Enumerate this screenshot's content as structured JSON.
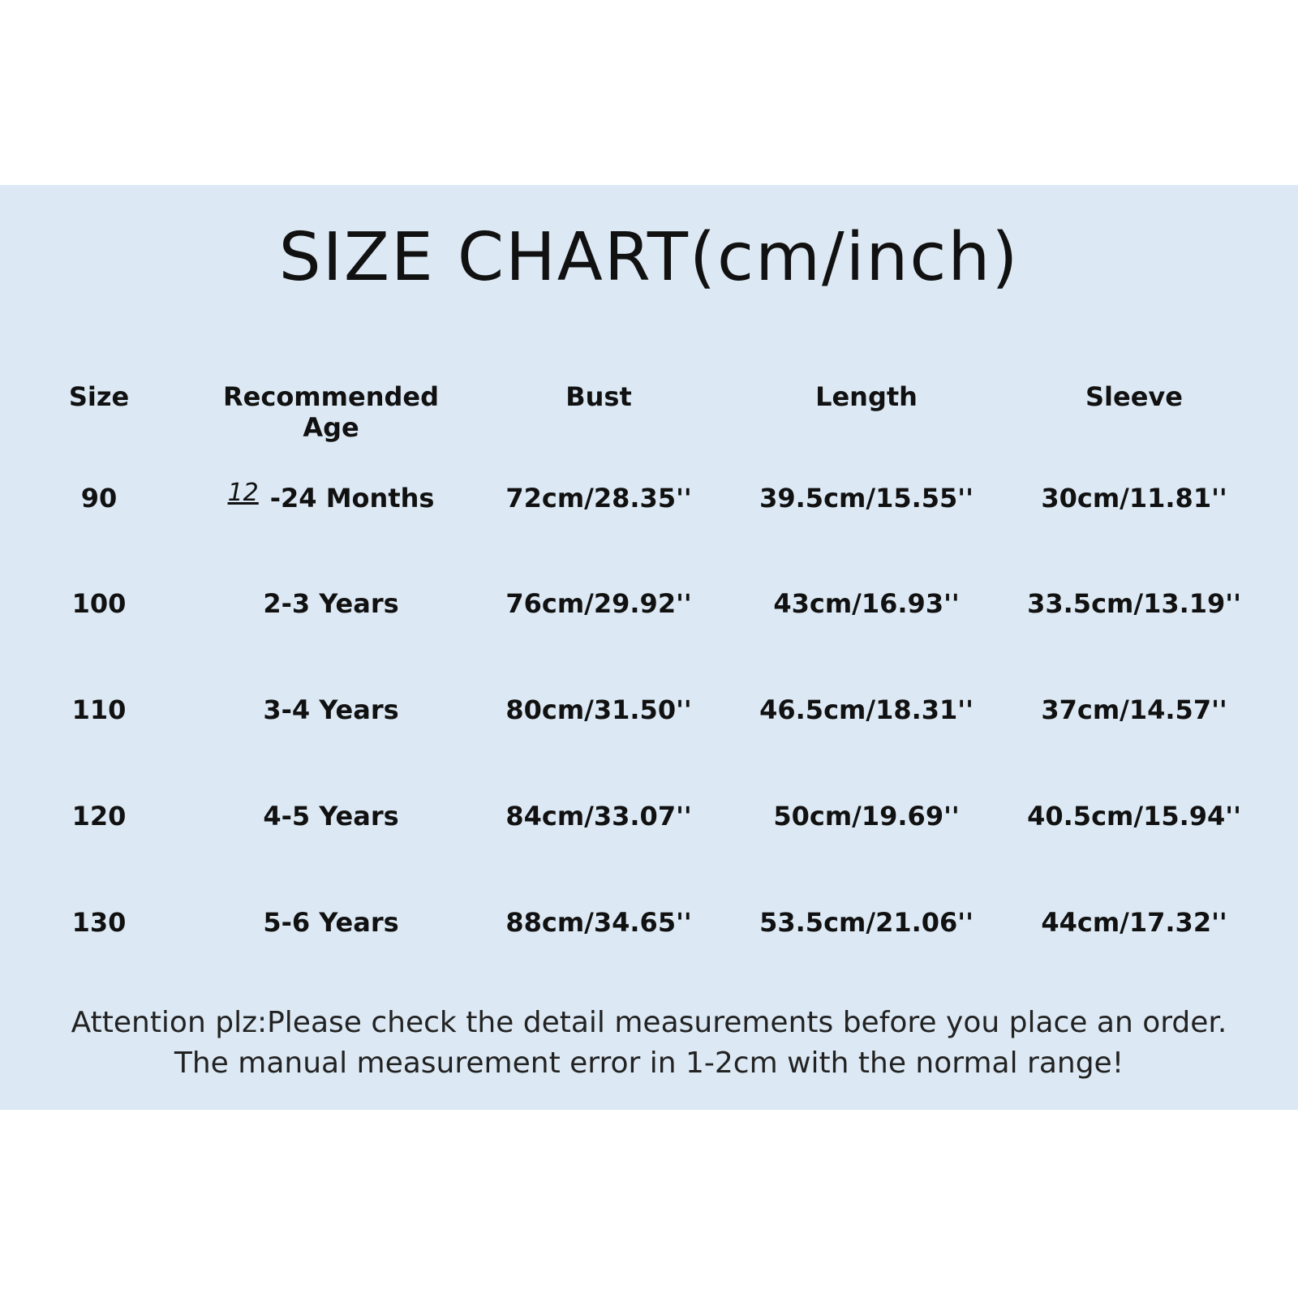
{
  "title": "SIZE CHART(cm/inch)",
  "table": {
    "headers": [
      "Size",
      "Recommended Age",
      "Bust",
      "Length",
      "Sleeve"
    ],
    "rows": [
      {
        "size": "90",
        "age_prefix": "12",
        "age": "-24 Months",
        "bust": "72cm/28.35''",
        "length": "39.5cm/15.55''",
        "sleeve": "30cm/11.81''"
      },
      {
        "size": "100",
        "age": "2-3 Years",
        "bust": "76cm/29.92''",
        "length": "43cm/16.93''",
        "sleeve": "33.5cm/13.19''"
      },
      {
        "size": "110",
        "age": "3-4 Years",
        "bust": "80cm/31.50''",
        "length": "46.5cm/18.31''",
        "sleeve": "37cm/14.57''"
      },
      {
        "size": "120",
        "age": "4-5 Years",
        "bust": "84cm/33.07''",
        "length": "50cm/19.69''",
        "sleeve": "40.5cm/15.94''"
      },
      {
        "size": "130",
        "age": "5-6 Years",
        "bust": "88cm/34.65''",
        "length": "53.5cm/21.06''",
        "sleeve": "44cm/17.32''"
      }
    ]
  },
  "notes": [
    "Attention plz:Please check the detail measurements before you place an order.",
    "The manual measurement error in 1-2cm with the normal range!"
  ],
  "colors": {
    "panel": "#dce9f4",
    "text": "#111111"
  }
}
